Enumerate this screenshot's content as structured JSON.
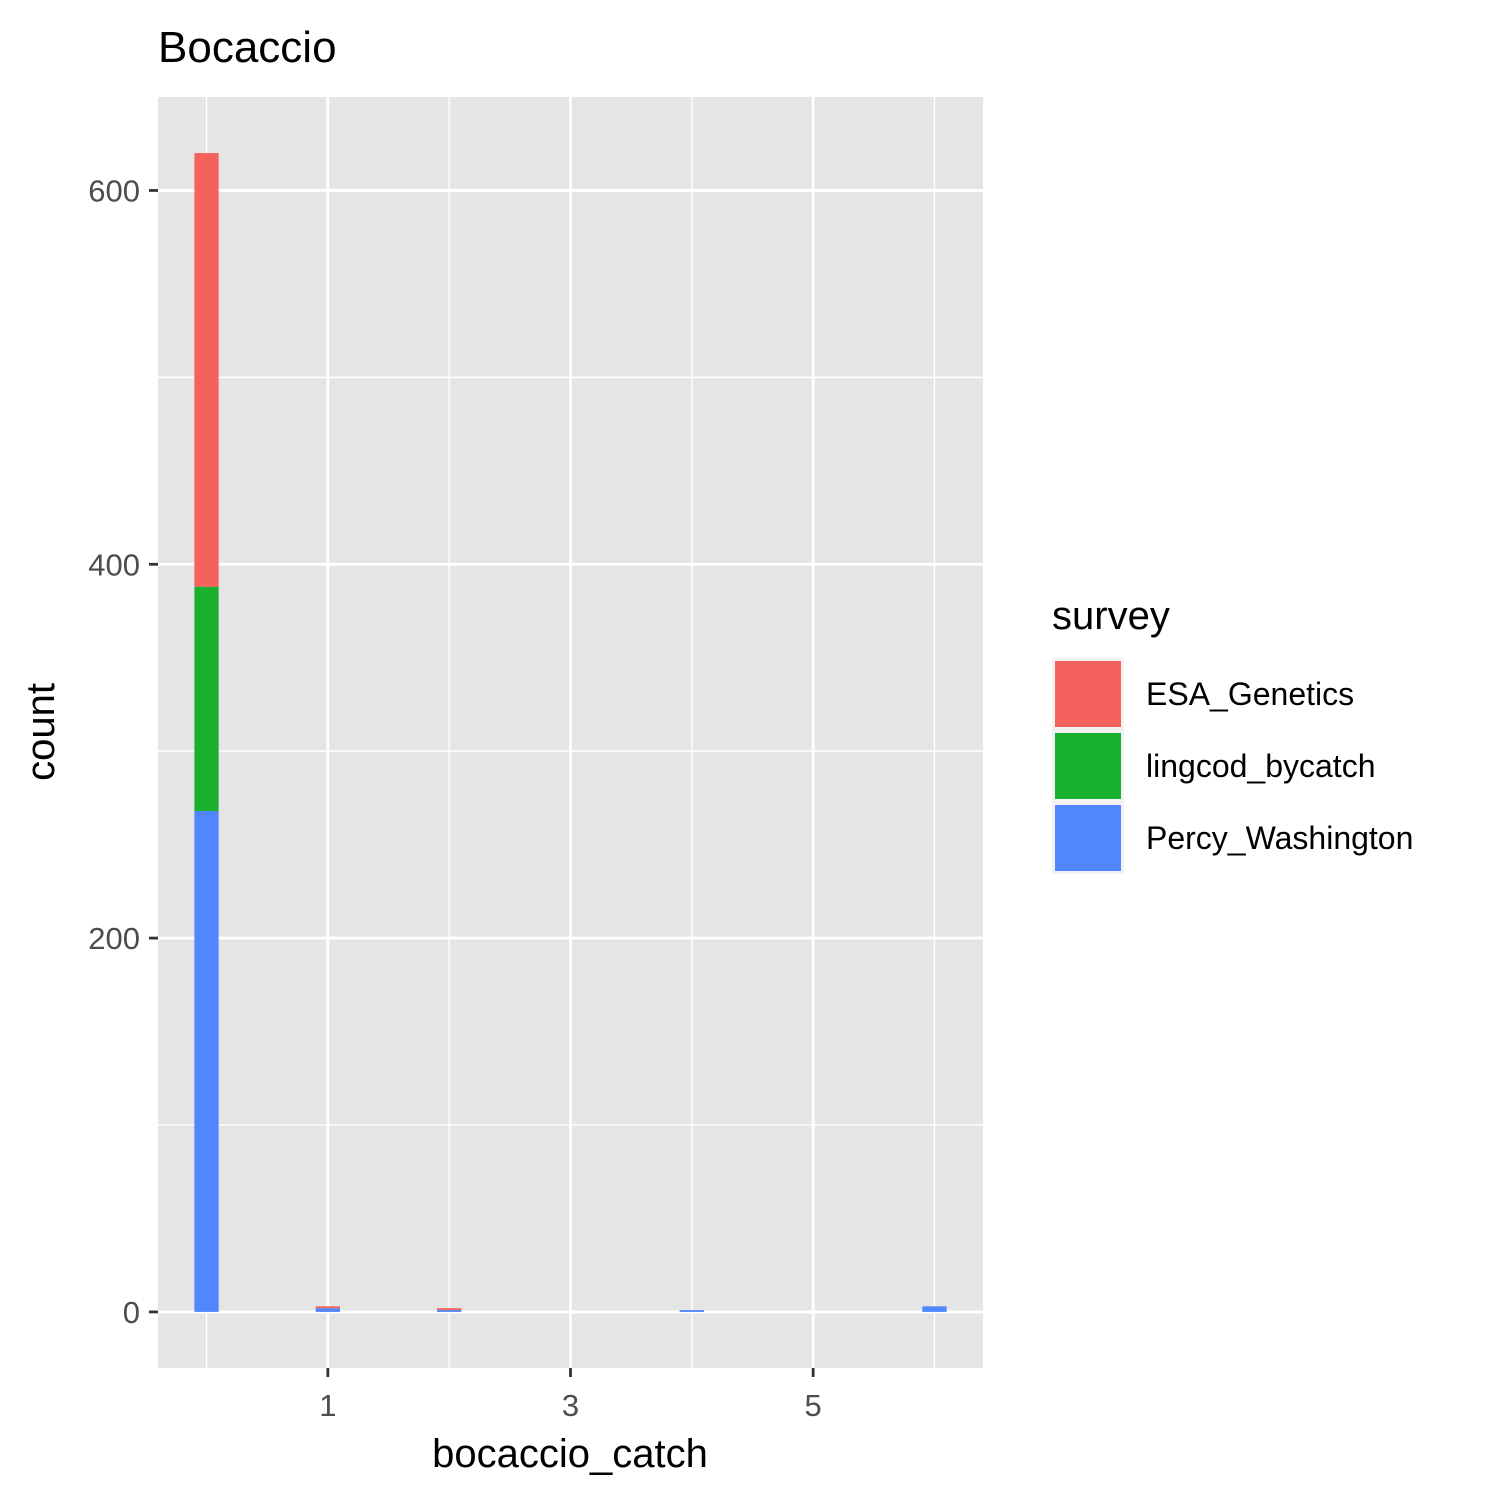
{
  "chart_data": {
    "type": "bar",
    "stacked": true,
    "title": "Bocaccio",
    "xlabel": "bocaccio_catch",
    "ylabel": "count",
    "x_ticks": [
      1,
      3,
      5
    ],
    "y_ticks": [
      0,
      200,
      400,
      600
    ],
    "xlim": [
      -0.4,
      6.4
    ],
    "ylim": [
      -30,
      650
    ],
    "grid": true,
    "legend": {
      "title": "survey",
      "position": "right"
    },
    "x": [
      0,
      1,
      2,
      4,
      6
    ],
    "series": [
      {
        "name": "Percy_Washington",
        "color": "#5087ff",
        "values": [
          268,
          2,
          1,
          1,
          3
        ]
      },
      {
        "name": "lingcod_bycatch",
        "color": "#19b12e",
        "values": [
          120,
          0,
          0,
          0,
          0
        ]
      },
      {
        "name": "ESA_Genetics",
        "color": "#f3625c",
        "values": [
          232,
          1,
          1,
          0,
          0
        ]
      }
    ],
    "legend_order": [
      "ESA_Genetics",
      "lingcod_bycatch",
      "Percy_Washington"
    ]
  }
}
